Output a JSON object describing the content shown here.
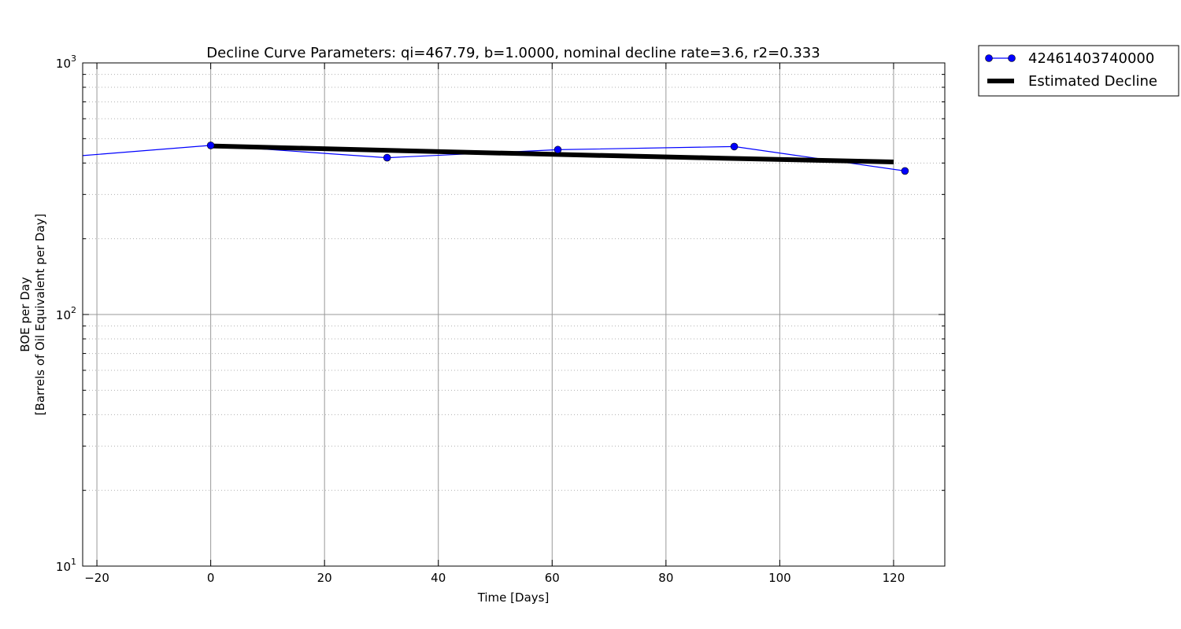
{
  "chart_data": {
    "type": "line",
    "title": "Decline Curve Parameters: qi=467.79, b=1.0000, nominal decline rate=3.6, r2=0.333",
    "xlabel": "Time [Days]",
    "ylabel_lines": [
      "BOE per Day",
      "[Barrels of Oil Equivalent per Day]"
    ],
    "xlim": [
      -22.5,
      129
    ],
    "ylim": [
      10,
      1000
    ],
    "yscale": "log",
    "x_ticks": [
      -20,
      0,
      20,
      40,
      60,
      80,
      100,
      120
    ],
    "x_tick_labels": [
      "−20",
      "0",
      "20",
      "40",
      "60",
      "80",
      "100",
      "120"
    ],
    "y_ticks": [
      10,
      100,
      1000
    ],
    "y_tick_labels": [
      {
        "base": "10",
        "exp": "1"
      },
      {
        "base": "10",
        "exp": "2"
      },
      {
        "base": "10",
        "exp": "3"
      }
    ],
    "grid": {
      "major": true,
      "minor_y": true
    },
    "legend_position": "outside-top-right",
    "series": [
      {
        "name": "42461403740000",
        "color": "#0000ff",
        "marker": "circle",
        "x": [
          -30,
          0,
          31,
          61,
          92,
          122
        ],
        "y": [
          415,
          470,
          420,
          452,
          465,
          372
        ]
      },
      {
        "name": "Estimated Decline",
        "color": "#000000",
        "style": "thick-line",
        "x": [
          0,
          30,
          60,
          90,
          120
        ],
        "y": [
          467.79,
          450,
          433,
          418,
          404
        ]
      }
    ]
  }
}
